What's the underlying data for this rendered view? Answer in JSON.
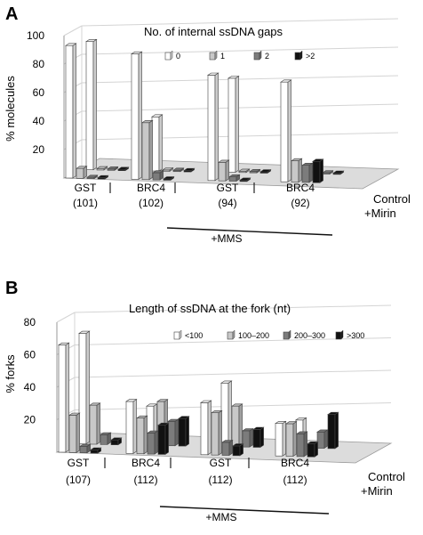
{
  "colors": {
    "series": [
      "#ffffff",
      "#c8c8c8",
      "#7c7c7c",
      "#111111"
    ],
    "floor": "#dcdcdc",
    "grid": "#d4d4d4",
    "axis": "#9a9a9a"
  },
  "chart_data": [
    {
      "panel": "A",
      "type": "bar",
      "subtype": "3d-grouped",
      "title": "No. of internal ssDNA gaps",
      "ylabel": "% molecules",
      "ylim": [
        0,
        100
      ],
      "yticks": [
        20,
        40,
        60,
        80,
        100
      ],
      "ytick_labels": [
        "20",
        "40",
        "60",
        "80",
        "100"
      ],
      "legend": [
        "0",
        "1",
        "2",
        ">2"
      ],
      "legend_position": "top-right",
      "depth_labels": [
        "Control",
        "+Mirin"
      ],
      "groups": [
        {
          "label": "GST",
          "n": "(101)"
        },
        {
          "label": "BRC4",
          "n": "(102)"
        },
        {
          "label": "GST",
          "n": "(94)"
        },
        {
          "label": "BRC4",
          "n": "(92)"
        }
      ],
      "bracket_label": "+MMS",
      "series": [
        {
          "name": "0",
          "rows": [
            [
              93,
              88,
              74,
              70
            ],
            [
              90,
              38,
              66,
              0
            ]
          ]
        },
        {
          "name": "1",
          "rows": [
            [
              7,
              40,
              13,
              15
            ],
            [
              0,
              0,
              0,
              0
            ]
          ]
        },
        {
          "name": "2",
          "rows": [
            [
              0,
              5,
              3,
              12
            ],
            [
              0,
              0,
              0,
              0
            ]
          ]
        },
        {
          "name": ">2",
          "rows": [
            [
              0,
              0,
              0,
              15
            ],
            [
              0,
              0,
              0,
              0
            ]
          ]
        }
      ]
    },
    {
      "panel": "B",
      "type": "bar",
      "subtype": "3d-grouped",
      "title": "Length of ssDNA at the fork (nt)",
      "ylabel": "% forks",
      "ylim": [
        0,
        80
      ],
      "yticks": [
        20,
        40,
        60,
        80
      ],
      "ytick_labels": [
        "20",
        "40",
        "60",
        "80"
      ],
      "legend": [
        "<100",
        "100–200",
        "200–300",
        ">300"
      ],
      "legend_position": "top-right",
      "depth_labels": [
        "Control",
        "+Mirin"
      ],
      "groups": [
        {
          "label": "GST",
          "n": "(107)"
        },
        {
          "label": "BRC4",
          "n": "(112)"
        },
        {
          "label": "GST",
          "n": "(112)"
        },
        {
          "label": "BRC4",
          "n": "(112)"
        }
      ],
      "bracket_label": "+MMS",
      "series": [
        {
          "name": "<100",
          "rows": [
            [
              66,
              32,
              32,
              20
            ],
            [
              68,
              24,
              39,
              17
            ]
          ]
        },
        {
          "name": "100–200",
          "rows": [
            [
              23,
              22,
              26,
              20
            ],
            [
              24,
              27,
              25,
              0
            ]
          ]
        },
        {
          "name": "200–300",
          "rows": [
            [
              4,
              13,
              8,
              14
            ],
            [
              6,
              15,
              10,
              10
            ]
          ]
        },
        {
          "name": ">300",
          "rows": [
            [
              2,
              18,
              6,
              8
            ],
            [
              3,
              17,
              11,
              21
            ]
          ]
        }
      ]
    }
  ]
}
